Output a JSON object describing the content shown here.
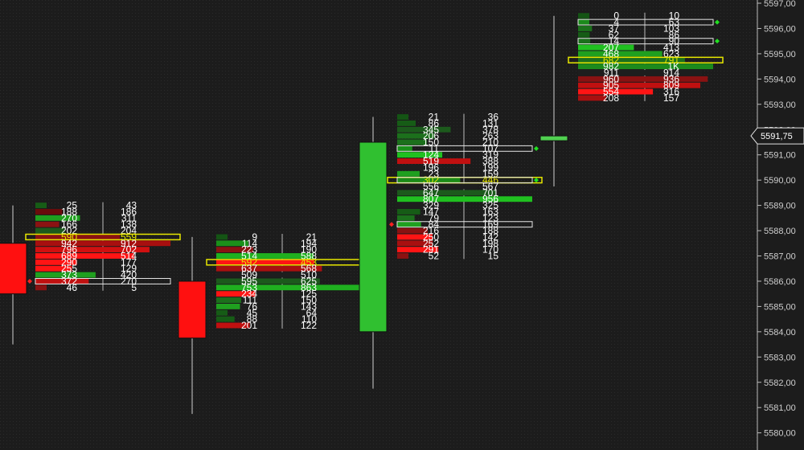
{
  "chart_data": {
    "type": "footprint",
    "y_axis": {
      "ticks": [
        "5597,00",
        "5596,00",
        "5595,00",
        "5594,00",
        "5593,00",
        "5592,00",
        "5591,00",
        "5590,00",
        "5589,00",
        "5588,00",
        "5587,00",
        "5586,00",
        "5585,00",
        "5584,00",
        "5583,00",
        "5582,00",
        "5581,00",
        "5580,00"
      ],
      "tick_values": [
        5597,
        5596,
        5595,
        5594,
        5593,
        5592,
        5591,
        5590,
        5589,
        5588,
        5587,
        5586,
        5585,
        5584,
        5583,
        5582,
        5581,
        5580
      ],
      "current_price_label": "5591,75",
      "current_price": 5591.75
    },
    "colors": {
      "background": "#1c1c1c",
      "green": "#1fb51f",
      "red": "#e80f0f",
      "poc_box": "#e6e600",
      "imbalance_box": "#e6e6e6",
      "text": "#ffffff"
    },
    "bars": [
      {
        "candle": {
          "open": 5587.5,
          "high": 5589.0,
          "low": 5583.5,
          "close": 5585.5,
          "color": "#ff1010"
        },
        "poc_row": 5,
        "boxed_rows": [
          12
        ],
        "markers": [
          {
            "row": 12,
            "color": "#ff2020"
          }
        ],
        "rows": [
          {
            "bid": "25",
            "ask": "43",
            "bid_v": 25,
            "ask_v": 43,
            "color": "#165c16"
          },
          {
            "bid": "188",
            "ask": "186",
            "bid_v": 188,
            "ask_v": 186,
            "color": "#6a0c0c"
          },
          {
            "bid": "270",
            "ask": "311",
            "bid_v": 270,
            "ask_v": 311,
            "color": "#1fa01f"
          },
          {
            "bid": "166",
            "ask": "138",
            "bid_v": 166,
            "ask_v": 138,
            "color": "#8a1212"
          },
          {
            "bid": "202",
            "ask": "204",
            "bid_v": 202,
            "ask_v": 204,
            "color": "#1c5a1c"
          },
          {
            "bid": "590",
            "ask": "559",
            "bid_v": 590,
            "ask_v": 559,
            "color": "#8a1212"
          },
          {
            "bid": "942",
            "ask": "912",
            "bid_v": 942,
            "ask_v": 912,
            "color": "#a80f0f"
          },
          {
            "bid": "796",
            "ask": "702",
            "bid_v": 796,
            "ask_v": 702,
            "color": "#d01010"
          },
          {
            "bid": "689",
            "ask": "514",
            "bid_v": 689,
            "ask_v": 514,
            "color": "#ff1414"
          },
          {
            "bid": "290",
            "ask": "177",
            "bid_v": 290,
            "ask_v": 177,
            "color": "#ff1414"
          },
          {
            "bid": "255",
            "ask": "129",
            "bid_v": 255,
            "ask_v": 129,
            "color": "#ff1414"
          },
          {
            "bid": "373",
            "ask": "420",
            "bid_v": 373,
            "ask_v": 420,
            "color": "#1fa01f"
          },
          {
            "bid": "372",
            "ask": "270",
            "bid_v": 372,
            "ask_v": 270,
            "color": "#c01010"
          },
          {
            "bid": "46",
            "ask": "5",
            "bid_v": 46,
            "ask_v": 5,
            "color": "#8a1212"
          }
        ]
      },
      {
        "candle": {
          "open": 5586.0,
          "high": 5587.75,
          "low": 5580.75,
          "close": 5583.75,
          "color": "#ff1010"
        },
        "poc_row": 4,
        "boxed_rows": [],
        "markers": [],
        "rows": [
          {
            "bid": "9",
            "ask": "21",
            "bid_v": 9,
            "ask_v": 21,
            "color": "#145414"
          },
          {
            "bid": "114",
            "ask": "194",
            "bid_v": 114,
            "ask_v": 194,
            "color": "#1a901a"
          },
          {
            "bid": "223",
            "ask": "190",
            "bid_v": 223,
            "ask_v": 190,
            "color": "#8a1212"
          },
          {
            "bid": "514",
            "ask": "588",
            "bid_v": 514,
            "ask_v": 588,
            "color": "#1fb01f"
          },
          {
            "bid": "592",
            "ask": "453",
            "bid_v": 592,
            "ask_v": 453,
            "color": "#ff1414"
          },
          {
            "bid": "637",
            "ask": "568",
            "bid_v": 637,
            "ask_v": 568,
            "color": "#a81010"
          },
          {
            "bid": "509",
            "ask": "510",
            "bid_v": 509,
            "ask_v": 510,
            "color": "#1e1e1e"
          },
          {
            "bid": "595",
            "ask": "625",
            "bid_v": 595,
            "ask_v": 625,
            "color": "#1c5a1c"
          },
          {
            "bid": "753",
            "ask": "863",
            "bid_v": 753,
            "ask_v": 863,
            "color": "#1fb01f"
          },
          {
            "bid": "234",
            "ask": "125",
            "bid_v": 234,
            "ask_v": 125,
            "color": "#ff1414"
          },
          {
            "bid": "111",
            "ask": "150",
            "bid_v": 111,
            "ask_v": 150,
            "color": "#1c701c"
          },
          {
            "bid": "76",
            "ask": "143",
            "bid_v": 76,
            "ask_v": 143,
            "color": "#1fa01f"
          },
          {
            "bid": "45",
            "ask": "64",
            "bid_v": 45,
            "ask_v": 64,
            "color": "#165c16"
          },
          {
            "bid": "88",
            "ask": "110",
            "bid_v": 88,
            "ask_v": 110,
            "color": "#165c16"
          },
          {
            "bid": "201",
            "ask": "122",
            "bid_v": 201,
            "ask_v": 122,
            "color": "#c01010"
          }
        ]
      },
      {
        "candle": {
          "open": 5584.0,
          "high": 5592.5,
          "low": 5581.75,
          "close": 5591.5,
          "color": "#30c030"
        },
        "poc_row": 10,
        "boxed_rows": [
          5,
          10,
          17
        ],
        "markers": [
          {
            "row": 5,
            "color": "#20e020"
          },
          {
            "row": 10,
            "color": "#20e020"
          },
          {
            "row": 17,
            "color": "#ff2020"
          }
        ],
        "rows": [
          {
            "bid": "21",
            "ask": "36",
            "bid_v": 21,
            "ask_v": 36,
            "color": "#145414"
          },
          {
            "bid": "86",
            "ask": "131",
            "bid_v": 86,
            "ask_v": 131,
            "color": "#165c16"
          },
          {
            "bid": "345",
            "ask": "378",
            "bid_v": 345,
            "ask_v": 378,
            "color": "#1c5a1c"
          },
          {
            "bid": "206",
            "ask": "263",
            "bid_v": 206,
            "ask_v": 263,
            "color": "#1c701c"
          },
          {
            "bid": "150",
            "ask": "210",
            "bid_v": 150,
            "ask_v": 210,
            "color": "#1c701c"
          },
          {
            "bid": "11",
            "ask": "107",
            "bid_v": 11,
            "ask_v": 107,
            "color": "#1a901a"
          },
          {
            "bid": "124",
            "ask": "319",
            "bid_v": 124,
            "ask_v": 319,
            "color": "#20c020"
          },
          {
            "bid": "519",
            "ask": "388",
            "bid_v": 519,
            "ask_v": 388,
            "color": "#c01010"
          },
          {
            "bid": "196",
            "ask": "199",
            "bid_v": 196,
            "ask_v": 199,
            "color": "#1e1e1e"
          },
          {
            "bid": "23",
            "ask": "159",
            "bid_v": 23,
            "ask_v": 159,
            "color": "#1fa01f"
          },
          {
            "bid": "302",
            "ask": "446",
            "bid_v": 302,
            "ask_v": 446,
            "color": "#1c8a1c"
          },
          {
            "bid": "556",
            "ask": "567",
            "bid_v": 556,
            "ask_v": 567,
            "color": "#1e1e1e"
          },
          {
            "bid": "647",
            "ask": "701",
            "bid_v": 647,
            "ask_v": 701,
            "color": "#1c5a1c"
          },
          {
            "bid": "807",
            "ask": "956",
            "bid_v": 807,
            "ask_v": 956,
            "color": "#20c020"
          },
          {
            "bid": "329",
            "ask": "325",
            "bid_v": 329,
            "ask_v": 325,
            "color": "#1e1e1e"
          },
          {
            "bid": "147",
            "ask": "163",
            "bid_v": 147,
            "ask_v": 163,
            "color": "#165c16"
          },
          {
            "bid": "79",
            "ask": "123",
            "bid_v": 79,
            "ask_v": 123,
            "color": "#1c701c"
          },
          {
            "bid": "84",
            "ask": "169",
            "bid_v": 84,
            "ask_v": 169,
            "color": "#1fa01f"
          },
          {
            "bid": "216",
            "ask": "188",
            "bid_v": 216,
            "ask_v": 188,
            "color": "#8a1212"
          },
          {
            "bid": "250",
            "ask": "142",
            "bid_v": 250,
            "ask_v": 142,
            "color": "#ff1414"
          },
          {
            "bid": "252",
            "ask": "198",
            "bid_v": 252,
            "ask_v": 198,
            "color": "#a81010"
          },
          {
            "bid": "291",
            "ask": "170",
            "bid_v": 291,
            "ask_v": 170,
            "color": "#ff1414"
          },
          {
            "bid": "52",
            "ask": "15",
            "bid_v": 52,
            "ask_v": 15,
            "color": "#8a1212"
          }
        ]
      },
      {
        "candle": {
          "open": 5591.75,
          "high": 5596.5,
          "low": 5589.75,
          "close": 5591.75,
          "color": "#50d050"
        },
        "poc_row": 7,
        "boxed_rows": [
          1,
          4
        ],
        "markers": [
          {
            "row": 1,
            "color": "#20e020"
          },
          {
            "row": 4,
            "color": "#20e020"
          }
        ],
        "rows": [
          {
            "bid": "0",
            "ask": "10",
            "bid_v": 0,
            "ask_v": 10,
            "color": "#145414"
          },
          {
            "bid": "4",
            "ask": "63",
            "bid_v": 4,
            "ask_v": 63,
            "color": "#1c8a1c"
          },
          {
            "bid": "37",
            "ask": "103",
            "bid_v": 37,
            "ask_v": 103,
            "color": "#1c701c"
          },
          {
            "bid": "62",
            "ask": "86",
            "bid_v": 62,
            "ask_v": 86,
            "color": "#165c16"
          },
          {
            "bid": "14",
            "ask": "90",
            "bid_v": 14,
            "ask_v": 90,
            "color": "#1c701c"
          },
          {
            "bid": "207",
            "ask": "413",
            "bid_v": 207,
            "ask_v": 413,
            "color": "#20c020"
          },
          {
            "bid": "468",
            "ask": "623",
            "bid_v": 468,
            "ask_v": 623,
            "color": "#1fa01f"
          },
          {
            "bid": "682",
            "ask": "791",
            "bid_v": 682,
            "ask_v": 791,
            "color": "#1c701c"
          },
          {
            "bid": "982",
            "ask": "1K",
            "bid_v": 982,
            "ask_v": 1000,
            "color": "#1c8a1c"
          },
          {
            "bid": "911",
            "ask": "914",
            "bid_v": 911,
            "ask_v": 914,
            "color": "#1e1e1e"
          },
          {
            "bid": "960",
            "ask": "936",
            "bid_v": 960,
            "ask_v": 936,
            "color": "#8a1212"
          },
          {
            "bid": "905",
            "ask": "809",
            "bid_v": 905,
            "ask_v": 809,
            "color": "#c01010"
          },
          {
            "bid": "554",
            "ask": "316",
            "bid_v": 554,
            "ask_v": 316,
            "color": "#ff1414"
          },
          {
            "bid": "208",
            "ask": "157",
            "bid_v": 208,
            "ask_v": 157,
            "color": "#a81010"
          }
        ]
      }
    ]
  }
}
